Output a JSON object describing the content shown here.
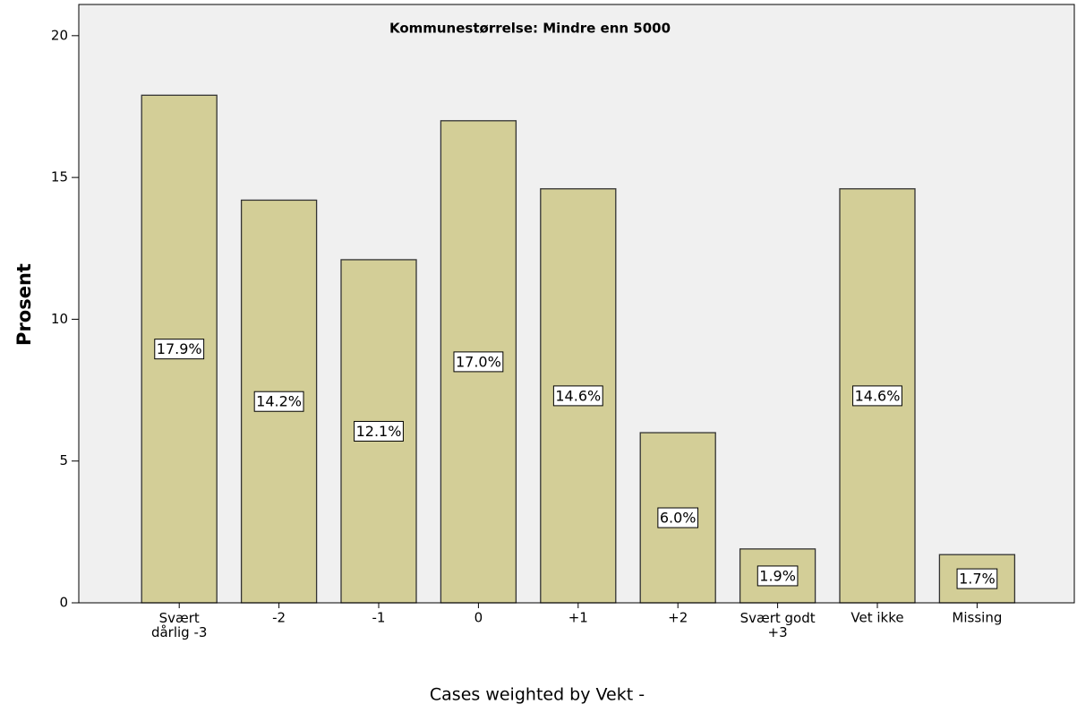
{
  "chart_data": {
    "type": "bar",
    "title": "Kommunestørrelse: Mindre enn 5000",
    "y_label": "Prosent",
    "footnote": "Cases weighted by Vekt -",
    "categories": [
      "Svært\ndårlig -3",
      "-2",
      "-1",
      "0",
      "+1",
      "+2",
      "Svært godt\n+3",
      "Vet ikke",
      "Missing"
    ],
    "values": [
      17.9,
      14.2,
      12.1,
      17.0,
      14.6,
      6.0,
      1.9,
      14.6,
      1.7
    ],
    "value_labels": [
      "17.9%",
      "14.2%",
      "12.1%",
      "17.0%",
      "14.6%",
      "6.0%",
      "1.9%",
      "14.6%",
      "1.7%"
    ],
    "color": "#d3ce97",
    "ylim": [
      0,
      21.1
    ],
    "yticks": [
      0,
      5,
      10,
      15,
      20
    ],
    "grid": false
  }
}
